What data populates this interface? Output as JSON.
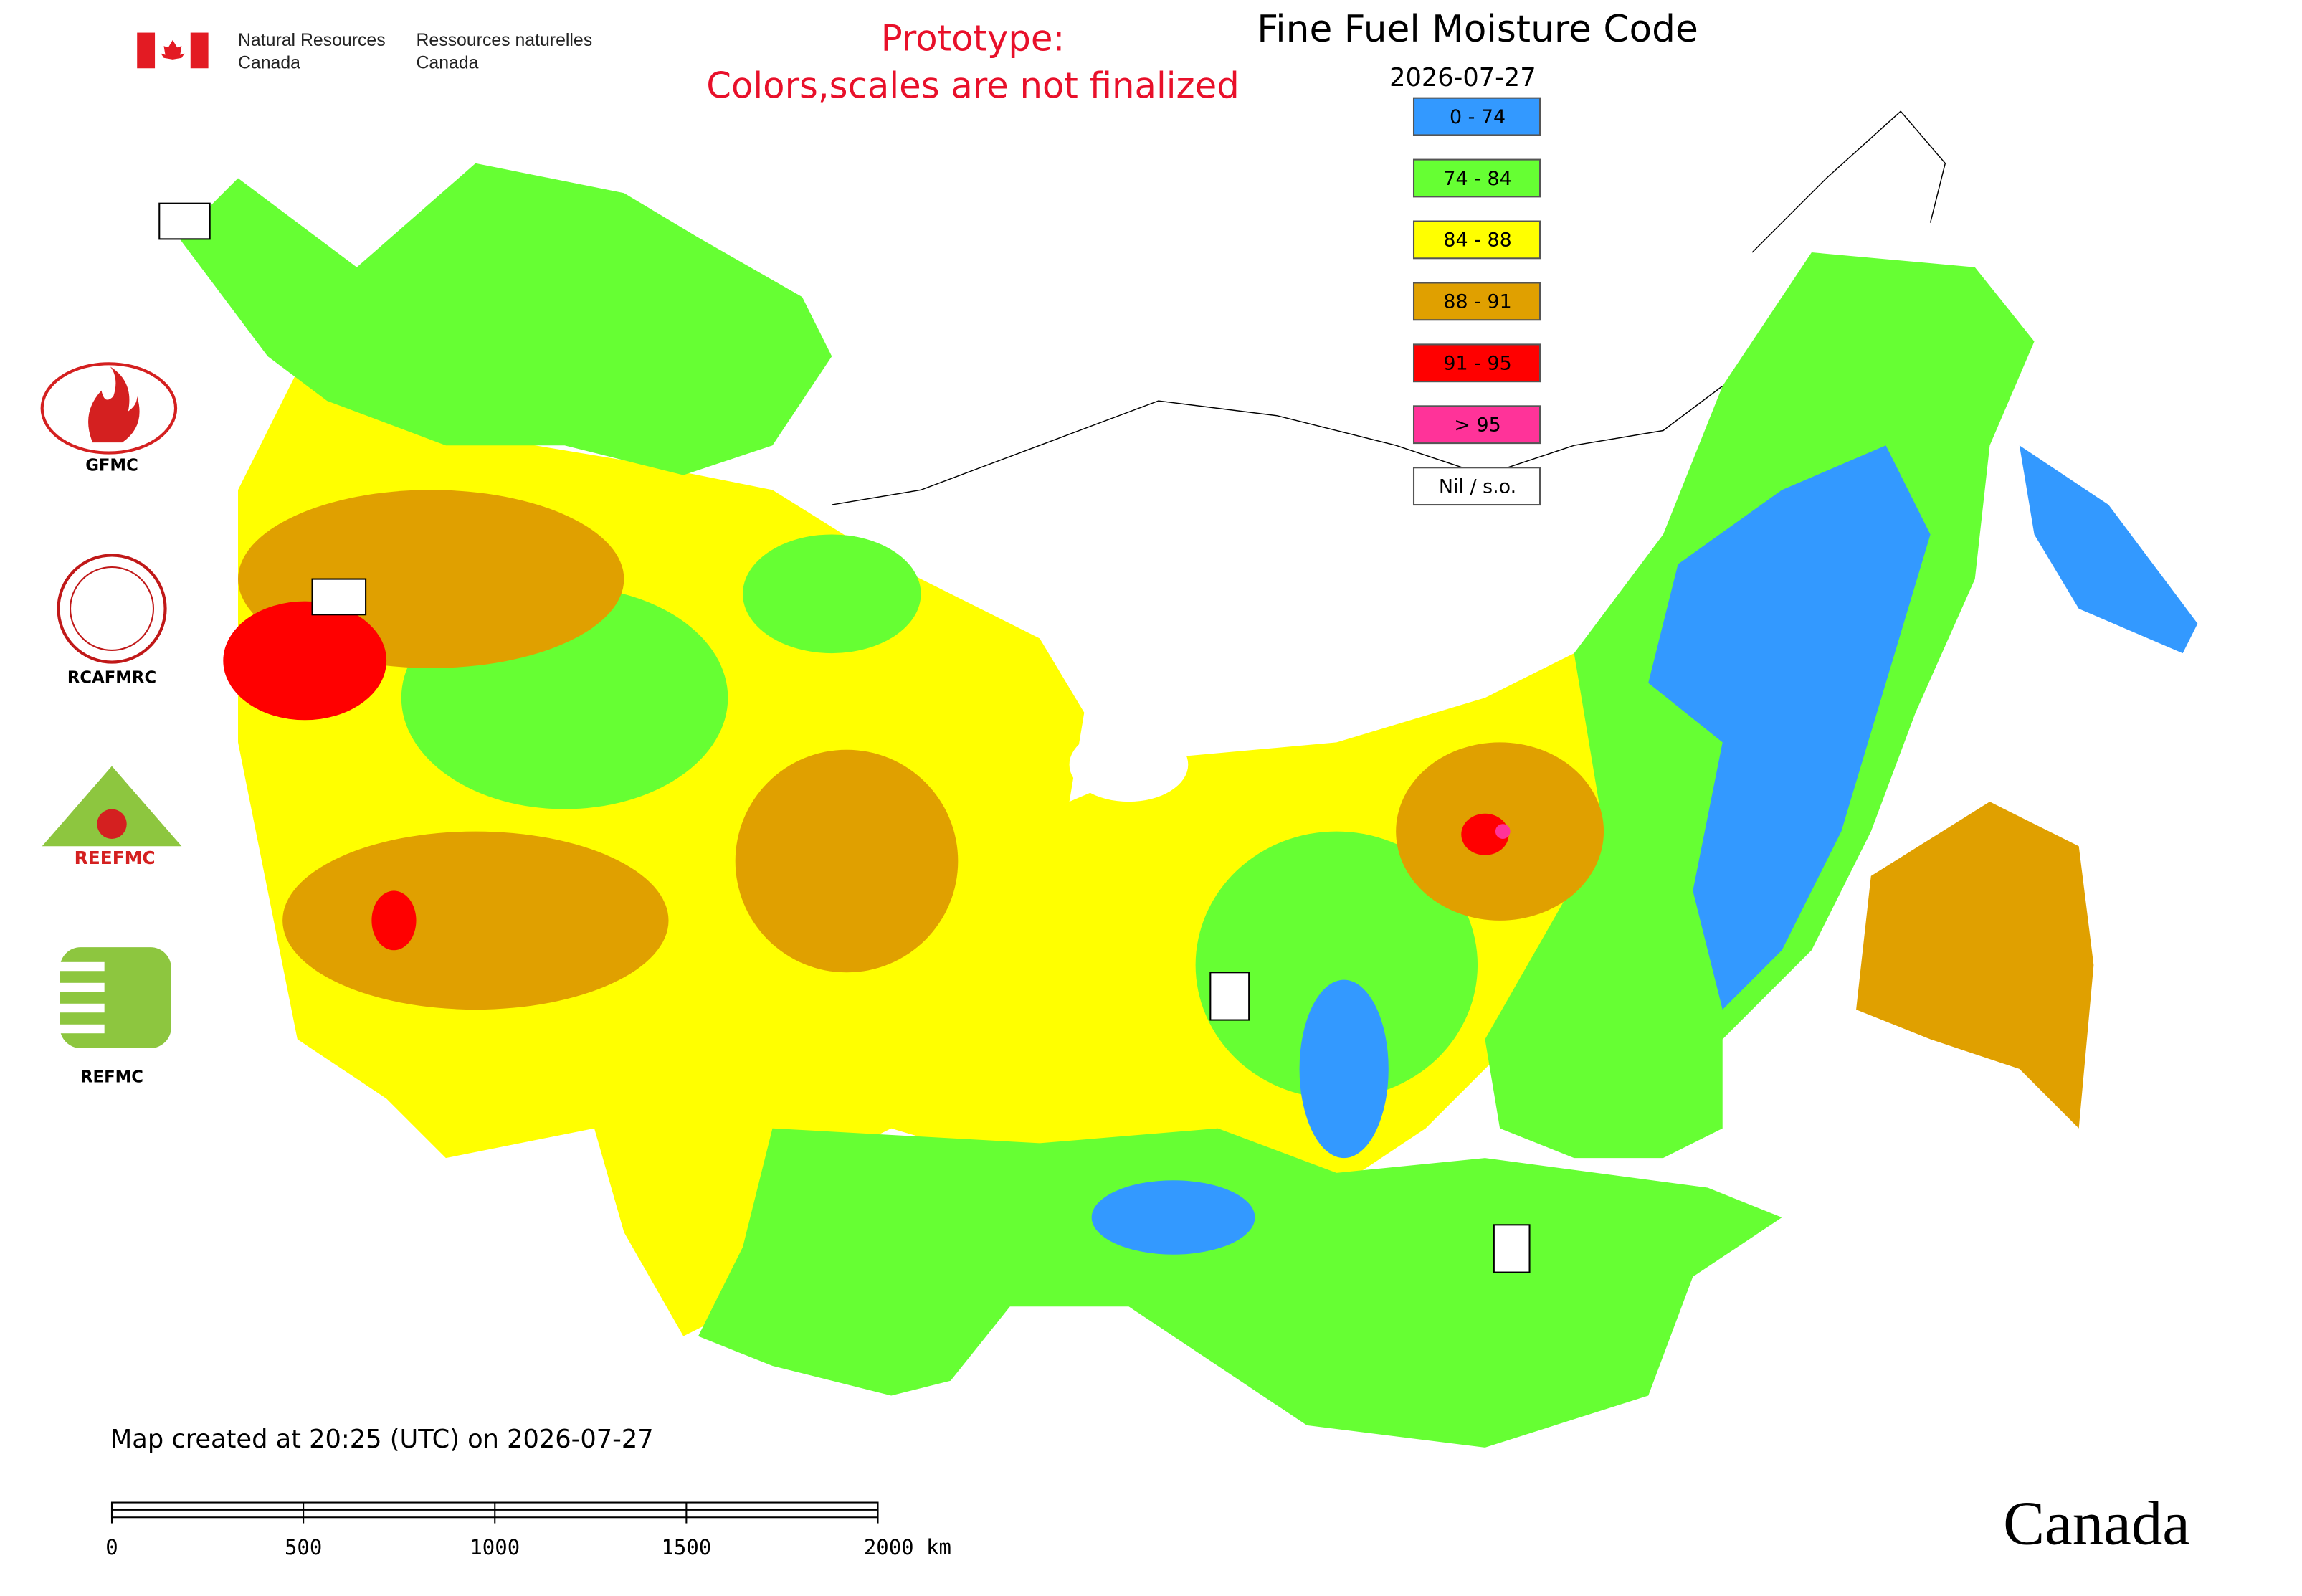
{
  "header": {
    "agency_en": [
      "Natural Resources",
      "Canada"
    ],
    "agency_fr": [
      "Ressources naturelles",
      "Canada"
    ],
    "notice": [
      "Prototype:",
      "Colors,scales are not finalized"
    ]
  },
  "map": {
    "title": "Fine Fuel Moisture Code",
    "date": "2026-07-27",
    "legend": [
      {
        "label": "0 - 74",
        "color": "#3399ff"
      },
      {
        "label": "74 - 84",
        "color": "#66ff33"
      },
      {
        "label": "84 - 88",
        "color": "#ffff00"
      },
      {
        "label": "88 - 91",
        "color": "#e0a000"
      },
      {
        "label": "91 - 95",
        "color": "#ff0000"
      },
      {
        "label": "> 95",
        "color": "#ff3399"
      },
      {
        "label": "Nil / s.o.",
        "color": "#ffffff"
      }
    ],
    "logos": [
      "GFMC",
      "RCAFMRC",
      "REEFMC",
      "REFMC"
    ],
    "footer": "Map created at 20:25 (UTC) on 2026-07-27",
    "scale_bar": [
      "0",
      "500",
      "1000",
      "1500",
      "2000 km"
    ],
    "wordmark": "Canada"
  }
}
